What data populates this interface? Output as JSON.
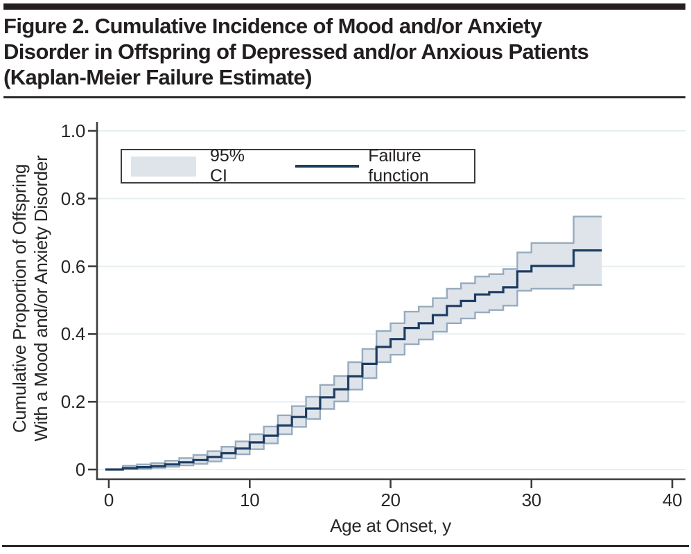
{
  "figure": {
    "title_lines": [
      "Figure 2. Cumulative Incidence of Mood and/or Anxiety",
      "Disorder in Offspring of Depressed and/or Anxious Patients",
      "(Kaplan-Meier Failure Estimate)"
    ],
    "colors": {
      "line": "#1d3d61",
      "ci_fill": "#dfe4eb",
      "ci_stroke": "#97abbe",
      "grid": "#e7eef2",
      "axis": "#3d3d3d",
      "rule": "#231f20"
    }
  },
  "chart_data": {
    "type": "line",
    "subtype": "kaplan-meier-step",
    "title": "Figure 2. Cumulative Incidence of Mood and/or Anxiety Disorder in Offspring of Depressed and/or Anxious Patients (Kaplan-Meier Failure Estimate)",
    "xlabel": "Age at Onset, y",
    "ylabel": "Cumulative Proportion of Offspring With a Mood and/or Anxiety Disorder",
    "ylabel_lines": [
      "Cumulative Proportion of Offspring",
      "With a Mood and/or Anxiety Disorder"
    ],
    "xlim": [
      0,
      40
    ],
    "ylim": [
      0,
      1.0
    ],
    "xticks": [
      0,
      10,
      20,
      30,
      40
    ],
    "yticks": [
      0,
      0.2,
      0.4,
      0.6,
      0.8,
      1.0
    ],
    "xtick_labels": [
      "0",
      "10",
      "20",
      "30",
      "40"
    ],
    "ytick_labels": [
      "0",
      "0.2",
      "0.4",
      "0.6",
      "0.8",
      "1.0"
    ],
    "grid": true,
    "legend_position": "inside-top-left",
    "legend": {
      "ci_label": "95% CI",
      "line_label": "Failure function"
    },
    "end_age": 35,
    "series": [
      {
        "name": "Failure function",
        "step": true,
        "ages": [
          0,
          1,
          2,
          3,
          4,
          5,
          6,
          7,
          8,
          9,
          10,
          11,
          12,
          13,
          14,
          15,
          16,
          17,
          18,
          19,
          20,
          21,
          22,
          23,
          24,
          25,
          26,
          27,
          28,
          29,
          30,
          33
        ],
        "estimate": [
          0,
          0.004,
          0.007,
          0.01,
          0.015,
          0.021,
          0.028,
          0.037,
          0.048,
          0.062,
          0.08,
          0.1,
          0.13,
          0.155,
          0.18,
          0.213,
          0.237,
          0.275,
          0.312,
          0.362,
          0.385,
          0.418,
          0.432,
          0.456,
          0.483,
          0.498,
          0.517,
          0.524,
          0.538,
          0.585,
          0.601,
          0.647
        ],
        "ci_lower": [
          0,
          0.001,
          0.002,
          0.005,
          0.008,
          0.012,
          0.017,
          0.024,
          0.033,
          0.045,
          0.06,
          0.077,
          0.104,
          0.126,
          0.149,
          0.179,
          0.201,
          0.236,
          0.27,
          0.317,
          0.339,
          0.37,
          0.384,
          0.407,
          0.432,
          0.446,
          0.464,
          0.471,
          0.484,
          0.528,
          0.534,
          0.545
        ],
        "ci_upper": [
          0,
          0.011,
          0.015,
          0.019,
          0.026,
          0.034,
          0.043,
          0.054,
          0.067,
          0.083,
          0.104,
          0.127,
          0.16,
          0.187,
          0.215,
          0.25,
          0.276,
          0.317,
          0.356,
          0.409,
          0.432,
          0.466,
          0.481,
          0.506,
          0.534,
          0.55,
          0.57,
          0.577,
          0.592,
          0.641,
          0.669,
          0.747
        ]
      }
    ]
  }
}
